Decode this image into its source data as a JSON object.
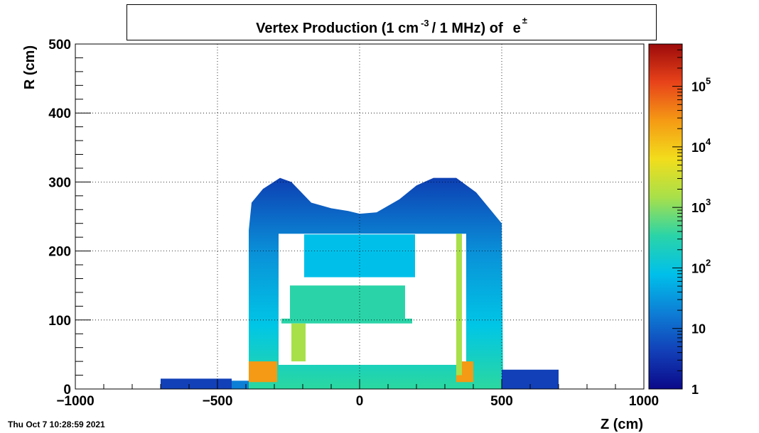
{
  "title": {
    "main": "Vertex Production (1 cm",
    "exponent": "-3",
    "rest": "/ 1 MHz) of",
    "particle": "e",
    "particle_sup": "±"
  },
  "timestamp": "Thu Oct  7 10:28:59 2021",
  "colors": {
    "palette": [
      "#0b0a8a",
      "#1240b8",
      "#0d7fd6",
      "#00c0ea",
      "#2ad4a8",
      "#a8e04a",
      "#f2dd1c",
      "#f59a14",
      "#e8431a",
      "#9c0a0a"
    ],
    "background": "#ffffff",
    "grid": "#000000"
  },
  "chart_data": {
    "type": "heatmap",
    "xlabel": "Z (cm)",
    "ylabel": "R (cm)",
    "xlim": [
      -1000,
      1000
    ],
    "ylim": [
      0,
      500
    ],
    "x_ticks": [
      -1000,
      -500,
      0,
      500,
      1000
    ],
    "x_tick_labels": [
      "−1000",
      "−500",
      "0",
      "500",
      "1000"
    ],
    "y_ticks": [
      0,
      100,
      200,
      300,
      400,
      500
    ],
    "y_tick_labels": [
      "0",
      "100",
      "200",
      "300",
      "400",
      "500"
    ],
    "grid": true,
    "z_scale": "log",
    "zlim": [
      1,
      500000
    ],
    "colorbar_ticks": [
      {
        "value": 1,
        "base": "1",
        "exp": ""
      },
      {
        "value": 10,
        "base": "10",
        "exp": ""
      },
      {
        "value": 100,
        "base": "10",
        "exp": "2"
      },
      {
        "value": 1000,
        "base": "10",
        "exp": "3"
      },
      {
        "value": 10000,
        "base": "10",
        "exp": "4"
      },
      {
        "value": 100000,
        "base": "10",
        "exp": "5"
      }
    ],
    "regions": [
      {
        "kind": "envelope",
        "z": [
          -390,
          505
        ],
        "r_max_profile": [
          [
            -390,
            230
          ],
          [
            -380,
            270
          ],
          [
            -340,
            290
          ],
          [
            -280,
            306
          ],
          [
            -240,
            300
          ],
          [
            -170,
            270
          ],
          [
            -100,
            262
          ],
          [
            -40,
            258
          ],
          [
            0,
            254
          ],
          [
            60,
            256
          ],
          [
            140,
            275
          ],
          [
            200,
            295
          ],
          [
            260,
            306
          ],
          [
            340,
            306
          ],
          [
            410,
            285
          ],
          [
            470,
            255
          ],
          [
            500,
            240
          ]
        ],
        "value": 40
      },
      {
        "kind": "cavity",
        "z": [
          -285,
          375
        ],
        "r": [
          35,
          225
        ],
        "value": 0
      },
      {
        "kind": "rect",
        "z": [
          -195,
          195
        ],
        "r": [
          162,
          224
        ],
        "value": 80
      },
      {
        "kind": "rect",
        "z": [
          -245,
          160
        ],
        "r": [
          100,
          150
        ],
        "value": 400
      },
      {
        "kind": "rect",
        "z": [
          -275,
          185
        ],
        "r": [
          95,
          102
        ],
        "value": 200
      },
      {
        "kind": "rect",
        "z": [
          -390,
          -290
        ],
        "r": [
          10,
          40
        ],
        "value": 50000
      },
      {
        "kind": "rect",
        "z": [
          340,
          400
        ],
        "r": [
          10,
          40
        ],
        "value": 20000
      },
      {
        "kind": "rect",
        "z": [
          -240,
          -190
        ],
        "r": [
          40,
          95
        ],
        "value": 2000
      },
      {
        "kind": "rect",
        "z": [
          340,
          360
        ],
        "r": [
          20,
          225
        ],
        "value": 2000
      },
      {
        "kind": "rect",
        "z": [
          -450,
          -390
        ],
        "r": [
          0,
          12
        ],
        "value": 10
      },
      {
        "kind": "rect",
        "z": [
          500,
          700
        ],
        "r": [
          0,
          28
        ],
        "value": 5
      },
      {
        "kind": "rect",
        "z": [
          -700,
          -450
        ],
        "r": [
          0,
          15
        ],
        "value": 3
      }
    ]
  }
}
